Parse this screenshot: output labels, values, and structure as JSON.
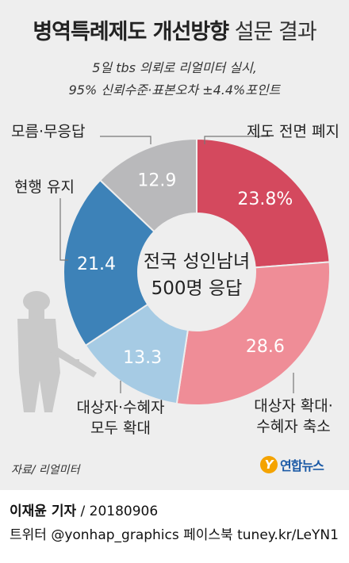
{
  "title": {
    "main": "병역특례제도 개선방향",
    "sub": "설문 결과"
  },
  "subtitle": [
    "5일 tbs 의뢰로 리얼미터 실시,",
    "95% 신뢰수준·표본오차 ±4.4%포인트"
  ],
  "chart_data": {
    "type": "pie",
    "title": "병역특례제도 개선방향 설문 결과",
    "center_label": [
      "전국 성인남녀",
      "500명 응답"
    ],
    "unit": "%",
    "slices": [
      {
        "label": "제도 전면 폐지",
        "value": 23.8,
        "value_text": "23.8%",
        "color": "#d4495e"
      },
      {
        "label": "대상자 확대·\n수혜자 축소",
        "value": 28.6,
        "value_text": "28.6",
        "color": "#ef8d97"
      },
      {
        "label": "대상자·수혜자\n모두 확대",
        "value": 13.3,
        "value_text": "13.3",
        "color": "#a6cbe4"
      },
      {
        "label": "현행 유지",
        "value": 21.4,
        "value_text": "21.4",
        "color": "#3d82b8"
      },
      {
        "label": "모름·무응답",
        "value": 12.9,
        "value_text": "12.9",
        "color": "#b9b9bb"
      }
    ]
  },
  "source": "자료/ 리얼미터",
  "logo": {
    "mark": "Y",
    "text": "연합뉴스"
  },
  "credit": {
    "author": "이재윤 기자",
    "date": " / 20180906",
    "social": "트위터 @yonhap_graphics  페이스북 tuney.kr/LeYN1"
  }
}
